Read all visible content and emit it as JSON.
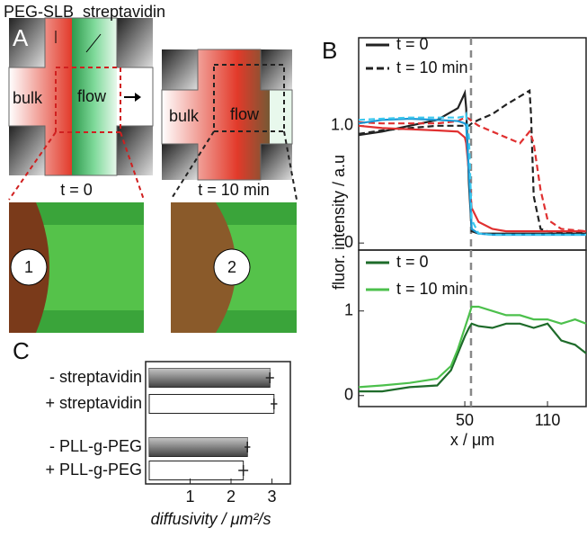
{
  "panel_a": {
    "label": "A",
    "annotations": [
      "PEG-SLB",
      "streptavidin"
    ],
    "schematic_left": {
      "left": "bulk",
      "right": "flow"
    },
    "schematic_right": {
      "left": "bulk",
      "right": "flow"
    },
    "micrographs": [
      {
        "title": "t = 0",
        "marker": "1"
      },
      {
        "title": "t = 10 min",
        "marker": "2"
      }
    ]
  },
  "panel_b": {
    "label": "B",
    "y_label": "fluor. intensity / a.u"
  },
  "panel_c": {
    "label": "C"
  },
  "chart_data": [
    {
      "type": "line",
      "x": [
        -27,
        -10,
        10,
        30,
        45,
        50,
        51,
        53,
        55,
        60,
        70,
        80,
        90,
        97,
        98,
        100,
        105,
        110,
        120,
        138
      ],
      "series": [
        {
          "name": "t = 0",
          "color": "#222222",
          "dash": false,
          "values": [
            0.92,
            0.95,
            1.0,
            1.05,
            1.15,
            1.28,
            1.15,
            0.5,
            0.1,
            0.08,
            0.08,
            0.08,
            0.08,
            0.08,
            0.08,
            0.08,
            0.08,
            0.08,
            0.08,
            0.08
          ]
        },
        {
          "name": "t = 10 min",
          "color": "#222222",
          "dash": true,
          "values": [
            0.93,
            0.96,
            0.98,
            1.0,
            1.0,
            1.0,
            1.0,
            1.0,
            1.02,
            1.05,
            1.1,
            1.18,
            1.25,
            1.3,
            1.1,
            0.4,
            0.12,
            0.1,
            0.09,
            0.09
          ]
        },
        {
          "color": "#e03030",
          "dash": false,
          "values": [
            1.0,
            0.98,
            0.97,
            0.96,
            0.95,
            0.9,
            0.85,
            0.6,
            0.3,
            0.18,
            0.12,
            0.1,
            0.1,
            0.1,
            0.1,
            0.1,
            0.1,
            0.1,
            0.1,
            0.1
          ]
        },
        {
          "color": "#e03030",
          "dash": true,
          "values": [
            1.03,
            1.02,
            1.02,
            1.02,
            1.04,
            1.07,
            1.07,
            1.06,
            1.04,
            1.0,
            0.95,
            0.9,
            0.85,
            0.95,
            0.92,
            0.85,
            0.45,
            0.2,
            0.12,
            0.1
          ]
        },
        {
          "color": "#1a9ad6",
          "dash": false,
          "values": [
            1.02,
            1.05,
            1.06,
            1.05,
            1.04,
            1.02,
            1.0,
            0.6,
            0.12,
            0.08,
            0.07,
            0.07,
            0.07,
            0.07,
            0.07,
            0.07,
            0.07,
            0.07,
            0.07,
            0.07
          ]
        },
        {
          "color": "#3cc8ef",
          "dash": true,
          "values": [
            1.05,
            1.06,
            1.07,
            1.07,
            1.07,
            1.08,
            1.1,
            0.9,
            0.2,
            0.08,
            0.07,
            0.07,
            0.07,
            0.07,
            0.07,
            0.07,
            0.07,
            0.07,
            0.07,
            0.07
          ]
        }
      ],
      "xlim": [
        -27,
        138
      ],
      "ylim": [
        -0.06,
        1.75
      ],
      "yticks": [
        0,
        {
          "value": 1,
          "label": "1.0"
        }
      ],
      "vline": 54.5
    },
    {
      "type": "line",
      "x": [
        -27,
        -10,
        10,
        30,
        40,
        45,
        50,
        53,
        55,
        60,
        70,
        80,
        90,
        100,
        110,
        120,
        130,
        138
      ],
      "series": [
        {
          "name": "t = 0",
          "color": "#1e6b2a",
          "dash": false,
          "values": [
            0.05,
            0.05,
            0.1,
            0.12,
            0.3,
            0.5,
            0.7,
            0.8,
            0.85,
            0.82,
            0.8,
            0.85,
            0.85,
            0.8,
            0.85,
            0.65,
            0.6,
            0.5
          ]
        },
        {
          "name": "t = 10 min",
          "color": "#4cc04c",
          "dash": false,
          "values": [
            0.1,
            0.12,
            0.15,
            0.2,
            0.35,
            0.55,
            0.8,
            0.95,
            1.05,
            1.05,
            1.0,
            0.95,
            0.95,
            0.9,
            0.9,
            0.85,
            0.9,
            0.85
          ]
        }
      ],
      "xlim": [
        -27,
        138
      ],
      "ylim": [
        -0.13,
        1.72
      ],
      "yticks": [
        0,
        1
      ],
      "xticks": [
        50,
        110
      ],
      "x_label": "x / μm",
      "vline": 54.5
    },
    {
      "type": "hbar",
      "categories": [
        "- streptavidin",
        "+ streptavidin",
        "- PLL-g-PEG",
        "+ PLL-g-PEG"
      ],
      "values": [
        2.95,
        3.05,
        2.4,
        2.3
      ],
      "errors": [
        0.1,
        0.08,
        0.07,
        0.12
      ],
      "colors": [
        "#666666",
        "#ffffff",
        "#666666",
        "#ffffff"
      ],
      "xlim": [
        0,
        3.45
      ],
      "xticks": [
        1,
        2,
        3
      ],
      "x_label": "diffusivity / μm²/s"
    }
  ]
}
